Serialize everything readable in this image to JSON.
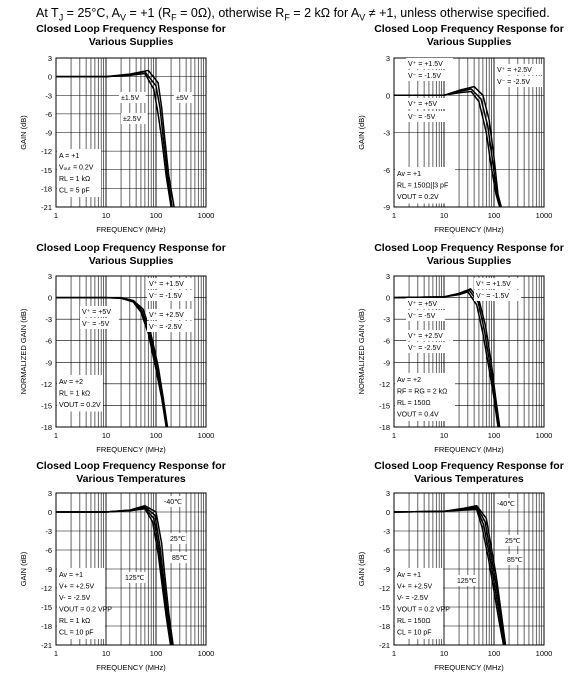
{
  "heading": "At T₁ = 25°C, Aᵥ = +1 (Rᴿ = 0Ω), otherwise Rᴿ = 2 kΩ for Aᵥ ≠ +1, unless otherwise specified.",
  "heading_parts": {
    "a": "At T",
    "a_sub": "J",
    "b": " = 25°C, A",
    "b_sub": "V",
    "c": " = +1 (R",
    "c_sub": "F",
    "d": " = 0Ω), otherwise R",
    "d_sub": "F",
    "e": " = 2 kΩ for A",
    "e_sub": "V",
    "f": " ≠ +1, unless otherwise specified."
  },
  "chart_data": [
    {
      "type": "line",
      "title": [
        "Closed Loop Frequency Response for",
        "Various Supplies"
      ],
      "xlabel": "FREQUENCY (MHz)",
      "ylabel": "GAIN (dB)",
      "x_scale": "log",
      "xlim": [
        1,
        1000
      ],
      "ylim": [
        -21,
        3
      ],
      "x_ticks": [
        "1",
        "10",
        "100",
        "1000"
      ],
      "y_ticks": [
        "3",
        "0",
        "-3",
        "-6",
        "-9",
        "-12",
        "-15",
        "-18",
        "-21"
      ],
      "grid": true,
      "series": [
        {
          "name": "±1.5V",
          "x": [
            1,
            10,
            30,
            60,
            90,
            110,
            130,
            160,
            200
          ],
          "y": [
            0,
            0,
            0.2,
            0.5,
            -2,
            -6,
            -10,
            -16,
            -21
          ]
        },
        {
          "name": "±2.5V",
          "x": [
            1,
            10,
            30,
            60,
            100,
            120,
            140,
            170,
            210
          ],
          "y": [
            0,
            0,
            0.3,
            0.8,
            -1.5,
            -5,
            -10,
            -16,
            -21
          ]
        },
        {
          "name": "±5V",
          "x": [
            1,
            10,
            30,
            70,
            110,
            130,
            150,
            180,
            230
          ],
          "y": [
            0,
            0,
            0.4,
            1.0,
            -1,
            -5,
            -10,
            -16,
            -21
          ]
        }
      ],
      "annotations": [
        "±1.5V",
        "±5V",
        "±2.5V"
      ],
      "notes": [
        "A = +1",
        "Vₒᵤₜ = 0.2V",
        "RL = 1 kΩ",
        "CL = 5 pF"
      ]
    },
    {
      "type": "line",
      "title": [
        "Closed Loop Frequency Response for",
        "Various Supplies"
      ],
      "xlabel": "FREQUENCY (MHz)",
      "ylabel": "GAIN (dB)",
      "x_scale": "log",
      "xlim": [
        1,
        1000
      ],
      "ylim": [
        -9,
        3
      ],
      "x_ticks": [
        "1",
        "10",
        "100",
        "1000"
      ],
      "y_ticks": [
        "3",
        "0",
        "-3",
        "-6",
        "-9"
      ],
      "grid": true,
      "series": [
        {
          "name": "V+ = +1.5V, V- = -1.5V",
          "x": [
            1,
            10,
            20,
            35,
            50,
            70,
            90,
            110,
            130
          ],
          "y": [
            0,
            0,
            0.2,
            0.3,
            -0.5,
            -3,
            -6,
            -8,
            -9
          ]
        },
        {
          "name": "V+ = +2.5V, V- = -2.5V",
          "x": [
            1,
            10,
            20,
            35,
            55,
            75,
            95,
            115,
            135
          ],
          "y": [
            0,
            0,
            0.3,
            0.5,
            -0.3,
            -2.5,
            -5.5,
            -8,
            -9
          ]
        },
        {
          "name": "V+ = +5V, V- = -5V",
          "x": [
            1,
            10,
            20,
            40,
            60,
            80,
            100,
            120,
            140
          ],
          "y": [
            0,
            0,
            0.4,
            0.7,
            0,
            -2,
            -5,
            -8,
            -9
          ]
        }
      ],
      "annotations": [
        "V⁺ = +1.5V",
        "V⁻ = -1.5V",
        "V⁺ = +2.5V",
        "V⁻ = -2.5V",
        "V⁺ = +5V",
        "V⁻ = -5V"
      ],
      "notes": [
        "Av = +1",
        "RL = 150Ω||3 pF",
        "VOUT = 0.2V"
      ]
    },
    {
      "type": "line",
      "title": [
        "Closed Loop Frequency Response for",
        "Various Supplies"
      ],
      "xlabel": "FREQUENCY (MHz)",
      "ylabel": "NORMALIZED GAIN (dB)",
      "x_scale": "log",
      "xlim": [
        1,
        1000
      ],
      "ylim": [
        -18,
        3
      ],
      "x_ticks": [
        "1",
        "10",
        "100",
        "1000"
      ],
      "y_ticks": [
        "3",
        "0",
        "-3",
        "-6",
        "-9",
        "-12",
        "-15",
        "-18"
      ],
      "grid": true,
      "series": [
        {
          "name": "V+ = +1.5V, V- = -1.5V",
          "x": [
            1,
            10,
            20,
            35,
            50,
            70,
            100,
            130,
            160
          ],
          "y": [
            0,
            0,
            -0.1,
            -0.6,
            -2,
            -5,
            -10,
            -14,
            -18
          ]
        },
        {
          "name": "V+ = +2.5V, V- = -2.5V",
          "x": [
            1,
            10,
            20,
            35,
            52,
            73,
            105,
            135,
            165
          ],
          "y": [
            0,
            0,
            -0.1,
            -0.5,
            -1.8,
            -4.8,
            -9.8,
            -14,
            -18
          ]
        },
        {
          "name": "V+ = +5V, V- = -5V",
          "x": [
            1,
            10,
            20,
            35,
            55,
            76,
            110,
            140,
            170
          ],
          "y": [
            0,
            0,
            0,
            -0.4,
            -1.6,
            -4.5,
            -9.5,
            -14,
            -18
          ]
        }
      ],
      "annotations": [
        "V⁺ = +1.5V",
        "V⁻ = -1.5V",
        "V⁺ = +5V",
        "V⁻ = -5V",
        "V⁺ = +2.5V",
        "V⁻ = -2.5V"
      ],
      "notes": [
        "Av = +2",
        "RL = 1 kΩ",
        "VOUT = 0.2V"
      ]
    },
    {
      "type": "line",
      "title": [
        "Closed Loop Frequency Response for",
        "Various Supplies"
      ],
      "xlabel": "FREQUENCY (MHz)",
      "ylabel": "NORMALIZED GAIN (dB)",
      "x_scale": "log",
      "xlim": [
        1,
        1000
      ],
      "ylim": [
        -18,
        3
      ],
      "x_ticks": [
        "1",
        "10",
        "100",
        "1000"
      ],
      "y_ticks": [
        "3",
        "0",
        "-3",
        "-6",
        "-9",
        "-12",
        "-15",
        "-18"
      ],
      "grid": true,
      "series": [
        {
          "name": "V+ = +1.5V, V- = -1.5V",
          "x": [
            1,
            10,
            20,
            30,
            45,
            60,
            80,
            100,
            120
          ],
          "y": [
            0,
            0.1,
            0.4,
            0.8,
            -1,
            -5,
            -10,
            -14,
            -18
          ]
        },
        {
          "name": "V+ = +2.5V, V- = -2.5V",
          "x": [
            1,
            10,
            20,
            32,
            48,
            64,
            84,
            104,
            125
          ],
          "y": [
            0,
            0.1,
            0.5,
            1.0,
            -0.6,
            -4.5,
            -9.5,
            -14,
            -18
          ]
        },
        {
          "name": "V+ = +5V, V- = -5V",
          "x": [
            1,
            10,
            20,
            34,
            50,
            68,
            88,
            108,
            130
          ],
          "y": [
            0,
            0.1,
            0.6,
            1.2,
            -0.3,
            -4,
            -9,
            -14,
            -18
          ]
        }
      ],
      "annotations": [
        "V⁺ = +1.5V",
        "V⁻ = -1.5V",
        "V⁺ = +5V",
        "V⁻ = -5V",
        "V⁺ = +2.5V",
        "V⁻ = -2.5V"
      ],
      "notes": [
        "Av = +2",
        "RF = RG = 2 kΩ",
        "RL = 150Ω",
        "VOUT = 0.4V"
      ]
    },
    {
      "type": "line",
      "title": [
        "Closed Loop Frequency Response for",
        "Various Temperatures"
      ],
      "xlabel": "FREQUENCY (MHz)",
      "ylabel": "GAIN (dB)",
      "x_scale": "log",
      "xlim": [
        1,
        1000
      ],
      "ylim": [
        -21,
        3
      ],
      "x_ticks": [
        "1",
        "10",
        "100",
        "1000"
      ],
      "y_ticks": [
        "3",
        "0",
        "-3",
        "-6",
        "-9",
        "-12",
        "-15",
        "-18",
        "-21"
      ],
      "grid": true,
      "series": [
        {
          "name": "-40℃",
          "x": [
            1,
            10,
            30,
            60,
            100,
            130,
            150,
            180,
            220
          ],
          "y": [
            0,
            0,
            0.3,
            1.0,
            0,
            -5,
            -10,
            -16,
            -21
          ]
        },
        {
          "name": "25℃",
          "x": [
            1,
            10,
            30,
            60,
            95,
            120,
            140,
            170,
            210
          ],
          "y": [
            0,
            0,
            0.3,
            0.8,
            -0.5,
            -5.5,
            -10,
            -16,
            -21
          ]
        },
        {
          "name": "85℃",
          "x": [
            1,
            10,
            30,
            60,
            90,
            115,
            135,
            165,
            200
          ],
          "y": [
            0,
            0,
            0.2,
            0.6,
            -1,
            -6,
            -10.5,
            -16,
            -21
          ]
        },
        {
          "name": "125℃",
          "x": [
            1,
            10,
            30,
            60,
            85,
            110,
            130,
            160,
            195
          ],
          "y": [
            0,
            0,
            0.2,
            0.5,
            -1.5,
            -6.5,
            -11,
            -16.5,
            -21
          ]
        }
      ],
      "annotations": [
        "-40℃",
        "25℃",
        "85℃",
        "125℃"
      ],
      "notes": [
        "Av = +1",
        "V+ = +2.5V",
        "V- = -2.5V",
        "VOUT = 0.2 VPP",
        "RL = 1 kΩ",
        "CL = 10 pF"
      ]
    },
    {
      "type": "line",
      "title": [
        "Closed Loop Frequency Response for",
        "Various Temperatures"
      ],
      "xlabel": "FREQUENCY (MHz)",
      "ylabel": "GAIN (dB)",
      "x_scale": "log",
      "xlim": [
        1,
        1000
      ],
      "ylim": [
        -21,
        3
      ],
      "x_ticks": [
        "1",
        "10",
        "100",
        "1000"
      ],
      "y_ticks": [
        "3",
        "0",
        "-3",
        "-6",
        "-9",
        "-12",
        "-15",
        "-18",
        "-21"
      ],
      "grid": true,
      "series": [
        {
          "name": "-40℃",
          "x": [
            1,
            10,
            25,
            45,
            70,
            90,
            110,
            140,
            170
          ],
          "y": [
            0,
            0.1,
            0.6,
            1.0,
            -1,
            -6,
            -10,
            -16,
            -21
          ]
        },
        {
          "name": "25℃",
          "x": [
            1,
            10,
            25,
            45,
            66,
            86,
            105,
            135,
            165
          ],
          "y": [
            0,
            0.1,
            0.5,
            0.8,
            -1.5,
            -6.5,
            -10.5,
            -16,
            -21
          ]
        },
        {
          "name": "85℃",
          "x": [
            1,
            10,
            25,
            45,
            62,
            82,
            100,
            130,
            160
          ],
          "y": [
            0,
            0.1,
            0.4,
            0.6,
            -2,
            -7,
            -11,
            -16.5,
            -21
          ]
        },
        {
          "name": "125℃",
          "x": [
            1,
            10,
            25,
            45,
            58,
            78,
            95,
            125,
            155
          ],
          "y": [
            0,
            0.1,
            0.3,
            0.4,
            -2.5,
            -7.5,
            -11.5,
            -17,
            -21
          ]
        }
      ],
      "annotations": [
        "-40℃",
        "25℃",
        "85℃",
        "125℃"
      ],
      "notes": [
        "Av = +1",
        "V+ = +2.5V",
        "V- = -2.5V",
        "VOUT = 0.2 VPP",
        "RL = 150Ω",
        "CL = 10 pF"
      ]
    }
  ]
}
